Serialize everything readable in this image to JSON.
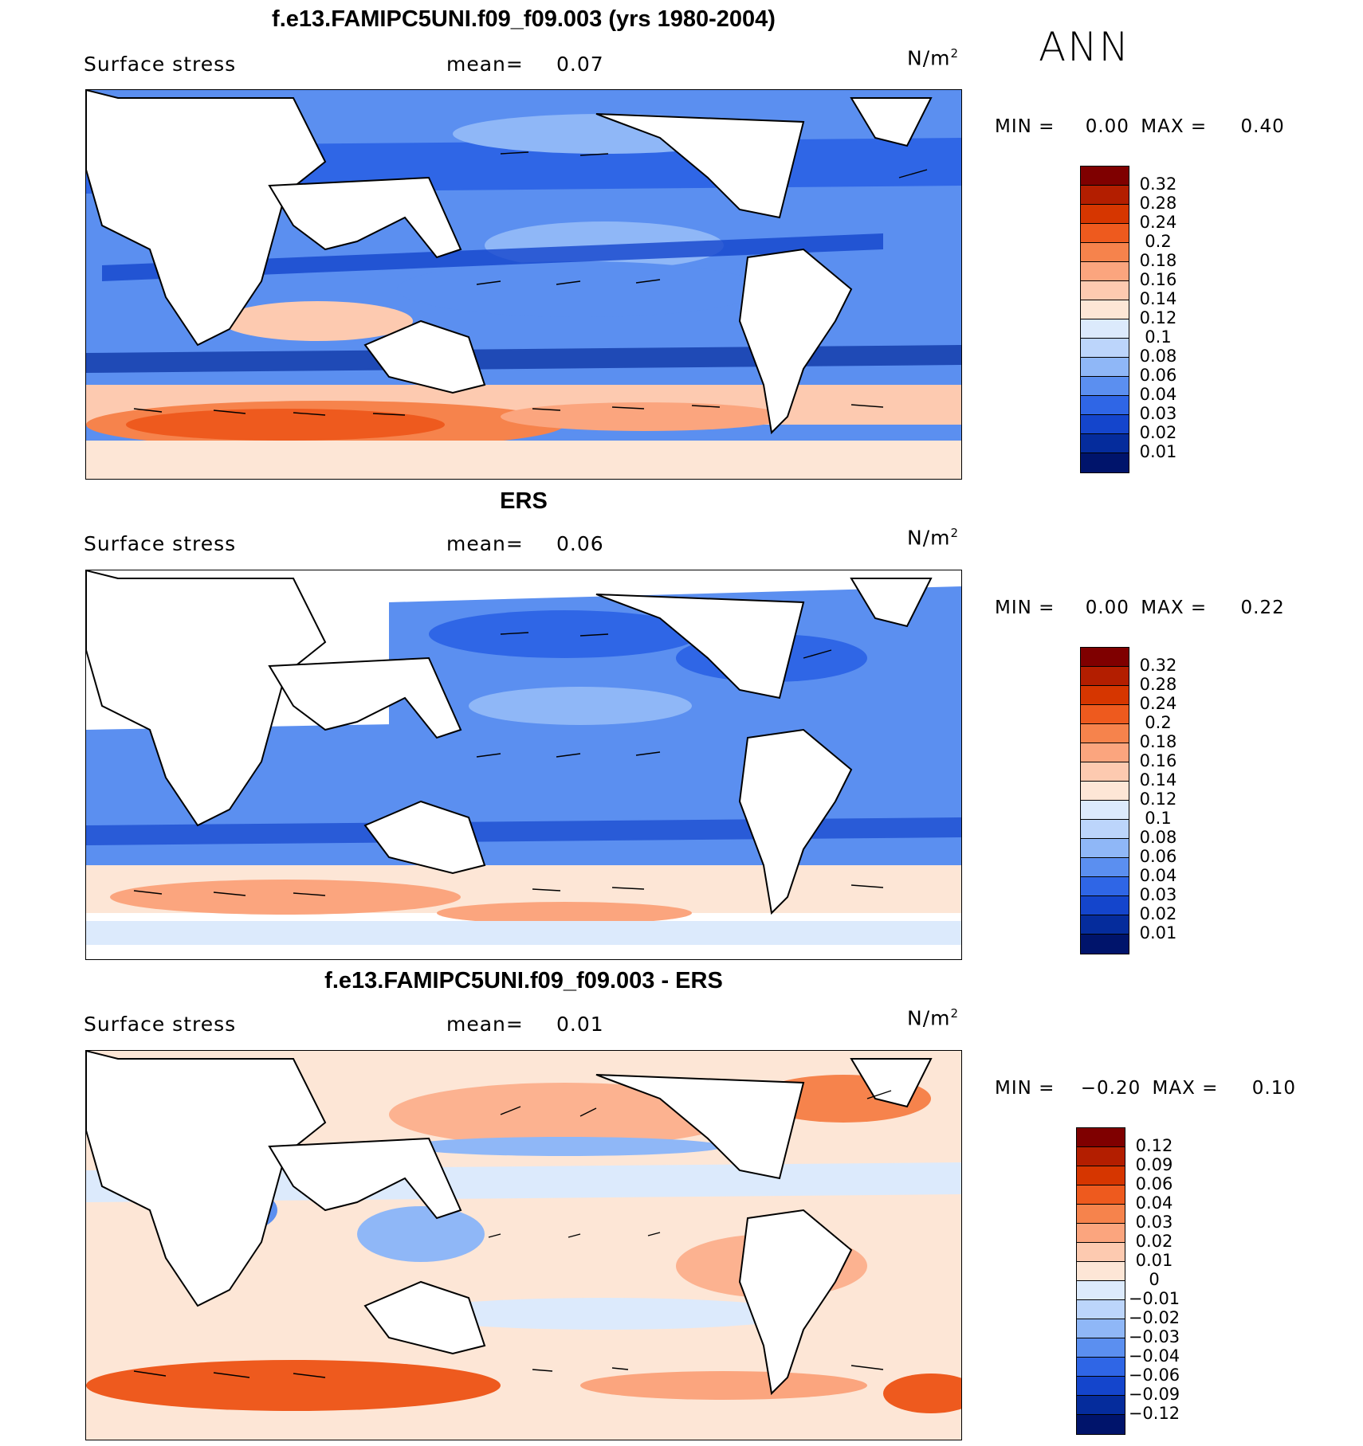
{
  "season": "ANN",
  "panels": [
    {
      "title": "f.e13.FAMIPC5UNI.f09_f09.003 (yrs 1980-2004)",
      "variable": "Surface stress",
      "mean_label": "mean=",
      "mean_value": "0.07",
      "units_base": "N/m",
      "units_exp": "2",
      "min_label": "MIN =",
      "min_value": "0.00",
      "max_label": "MAX =",
      "max_value": "0.40",
      "colorbar_labels": [
        "0.32",
        "0.28",
        "0.24",
        "0.2",
        "0.18",
        "0.16",
        "0.14",
        "0.12",
        "0.1",
        "0.08",
        "0.06",
        "0.04",
        "0.03",
        "0.02",
        "0.01"
      ],
      "colorbar_colors": [
        "#7f0000",
        "#b31e00",
        "#d63600",
        "#ee5a1e",
        "#f6834c",
        "#fba57e",
        "#fdcab0",
        "#fde6d6",
        "#dceafc",
        "#bcd5fb",
        "#8fb7f7",
        "#5b8ff0",
        "#2f66e6",
        "#1445cc",
        "#052c9c",
        "#00146b"
      ]
    },
    {
      "title": "ERS",
      "variable": "Surface stress",
      "mean_label": "mean=",
      "mean_value": "0.06",
      "units_base": "N/m",
      "units_exp": "2",
      "min_label": "MIN =",
      "min_value": "0.00",
      "max_label": "MAX =",
      "max_value": "0.22",
      "colorbar_labels": [
        "0.32",
        "0.28",
        "0.24",
        "0.2",
        "0.18",
        "0.16",
        "0.14",
        "0.12",
        "0.1",
        "0.08",
        "0.06",
        "0.04",
        "0.03",
        "0.02",
        "0.01"
      ],
      "colorbar_colors": [
        "#7f0000",
        "#b31e00",
        "#d63600",
        "#ee5a1e",
        "#f6834c",
        "#fba57e",
        "#fdcab0",
        "#fde6d6",
        "#dceafc",
        "#bcd5fb",
        "#8fb7f7",
        "#5b8ff0",
        "#2f66e6",
        "#1445cc",
        "#052c9c",
        "#00146b"
      ]
    },
    {
      "title": "f.e13.FAMIPC5UNI.f09_f09.003 - ERS",
      "variable": "Surface stress",
      "mean_label": "mean=",
      "mean_value": "0.01",
      "units_base": "N/m",
      "units_exp": "2",
      "min_label": "MIN =",
      "min_value": "−0.20",
      "max_label": "MAX =",
      "max_value": "0.10",
      "colorbar_labels": [
        "0.12",
        "0.09",
        "0.06",
        "0.04",
        "0.03",
        "0.02",
        "0.01",
        "0",
        "−0.01",
        "−0.02",
        "−0.03",
        "−0.04",
        "−0.06",
        "−0.09",
        "−0.12"
      ],
      "colorbar_colors": [
        "#7f0000",
        "#b31e00",
        "#d63600",
        "#ee5a1e",
        "#f6834c",
        "#fba57e",
        "#fdcab0",
        "#fde6d6",
        "#dceafc",
        "#bcd5fb",
        "#8fb7f7",
        "#5b8ff0",
        "#2f66e6",
        "#1445cc",
        "#052c9c",
        "#00146b"
      ]
    }
  ]
}
